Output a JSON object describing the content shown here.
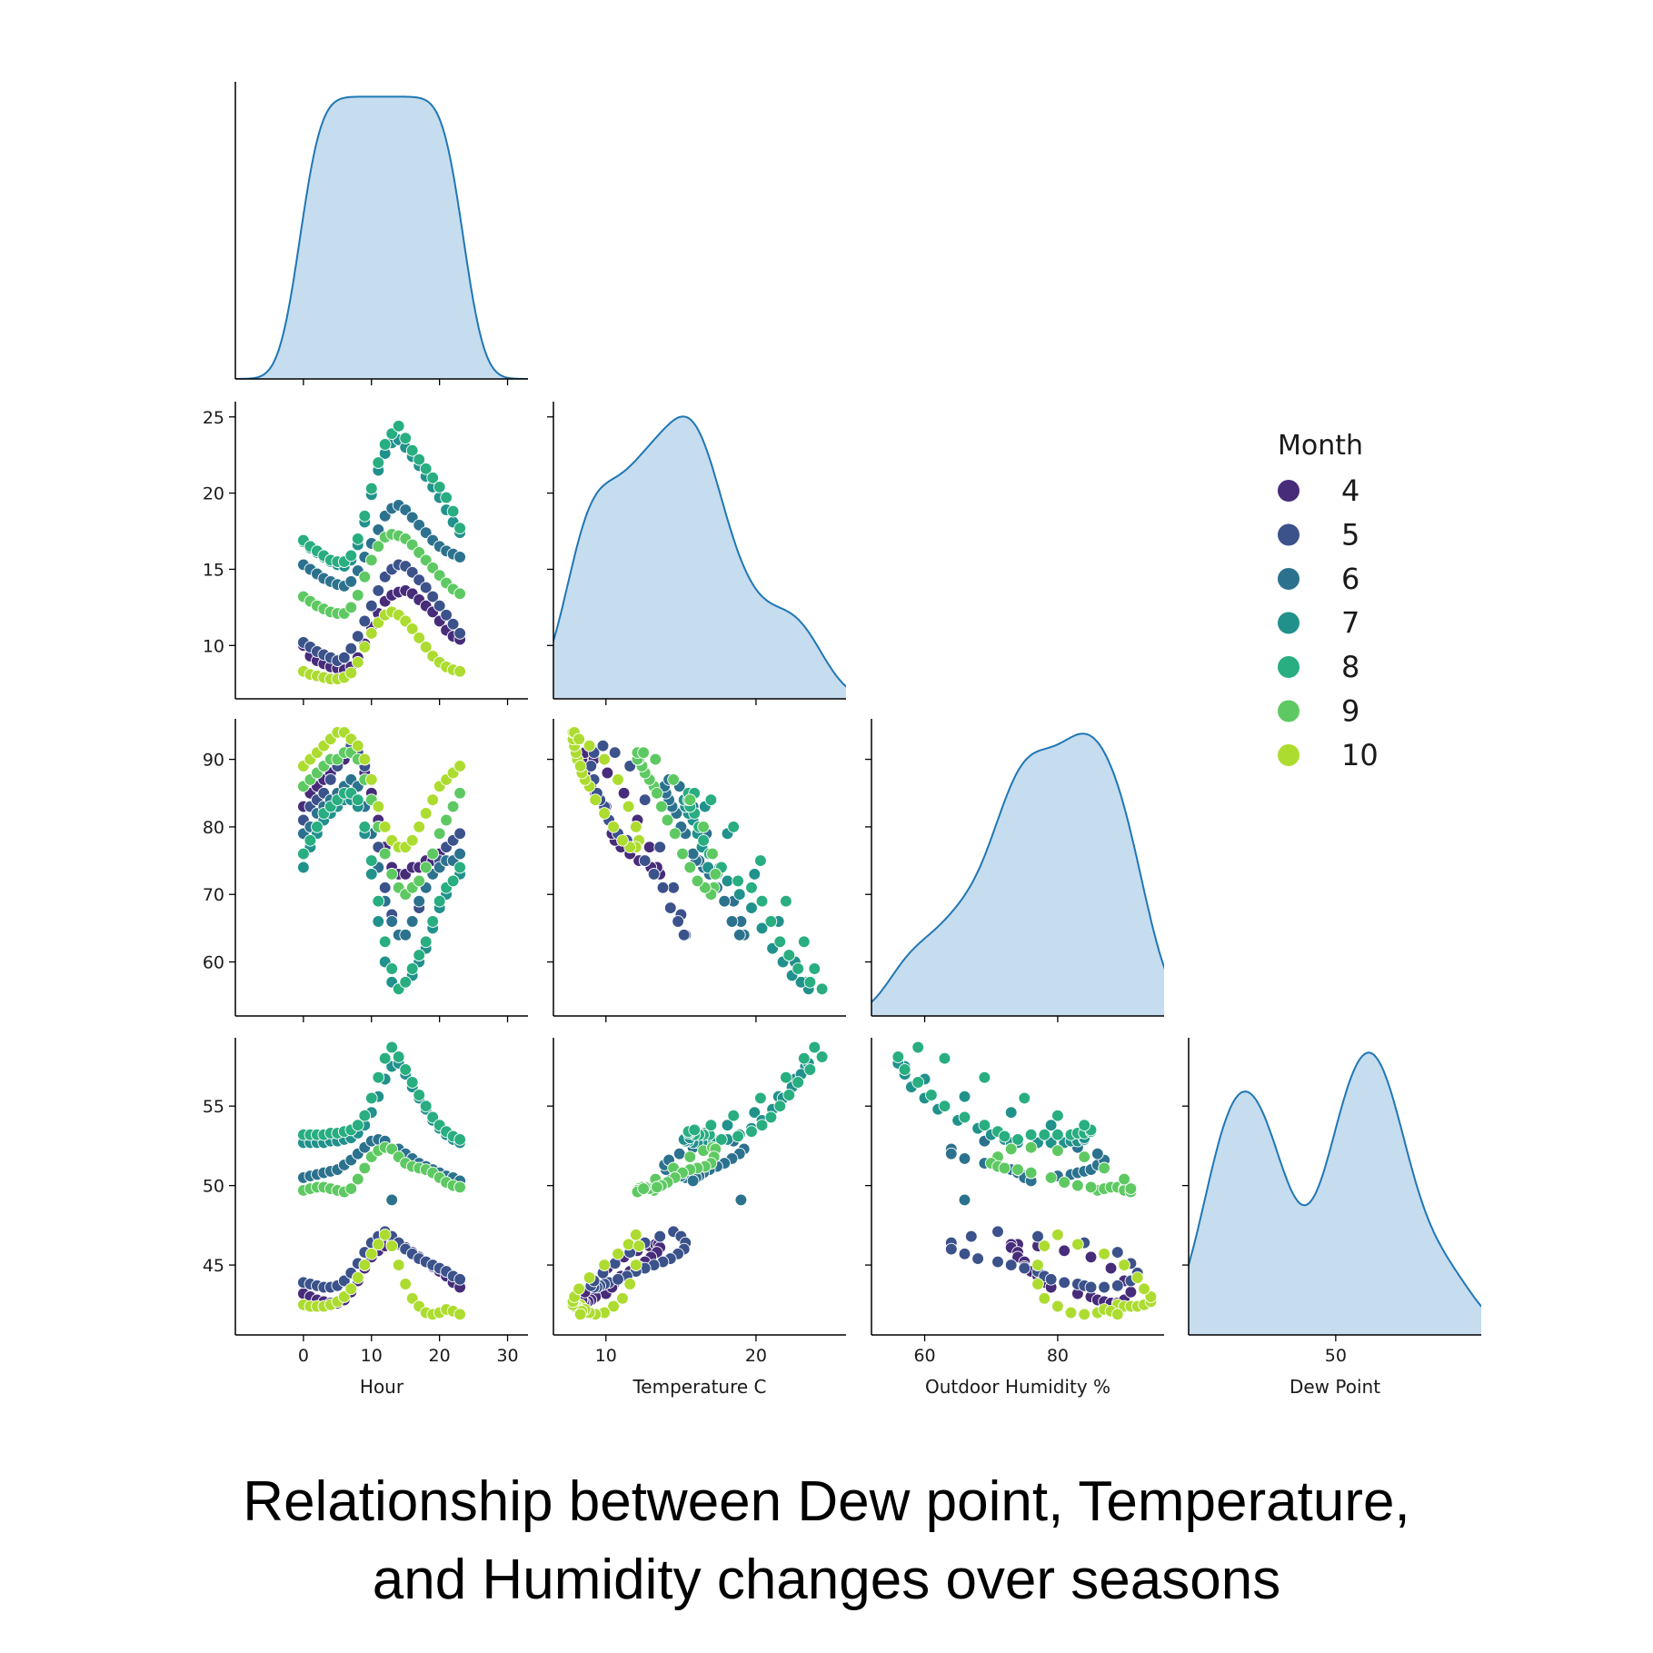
{
  "caption": {
    "line1": "Relationship between Dew point, Temperature,",
    "line2": "and Humidity changes over seasons"
  },
  "colors": {
    "kde_fill": "#c6dcef",
    "kde_line": "#1f77b4",
    "axis": "#000000",
    "months": {
      "4": "#472c7a",
      "5": "#3b528b",
      "6": "#2c728e",
      "7": "#21918c",
      "8": "#28ae80",
      "9": "#5ec962",
      "10": "#addc30"
    }
  },
  "chart_data": {
    "type": "scatter",
    "variables": [
      {
        "key": "hour",
        "label": "Hour",
        "lim": [
          -10,
          33
        ],
        "ticks": [
          0,
          10,
          20,
          30
        ]
      },
      {
        "key": "temp",
        "label": "Temperature C",
        "lim": [
          6.5,
          26
        ],
        "ticks": [
          10,
          20,
          30
        ],
        "yticks": [
          10,
          15,
          20,
          25
        ]
      },
      {
        "key": "hum",
        "label": "Outdoor Humidity %",
        "lim": [
          52,
          96
        ],
        "ticks": [
          60,
          80,
          100
        ],
        "yticks": [
          60,
          70,
          80,
          90
        ]
      },
      {
        "key": "dew",
        "label": "Dew Point",
        "lim": [
          40.6,
          59.3
        ],
        "ticks": [
          40,
          50,
          60
        ],
        "yticks": [
          45,
          50,
          55
        ]
      }
    ],
    "diag_kde_ranges": [
      [
        -10,
        33
      ],
      [
        5.5,
        30
      ],
      [
        42,
        110
      ],
      [
        36,
        65
      ]
    ],
    "legend": {
      "title": "Month",
      "placement": "right",
      "entries": [
        "4",
        "5",
        "6",
        "7",
        "8",
        "9",
        "10"
      ]
    },
    "hours": [
      0,
      1,
      2,
      3,
      4,
      5,
      6,
      7,
      8,
      9,
      10,
      11,
      12,
      13,
      14,
      15,
      16,
      17,
      18,
      19,
      20,
      21,
      22,
      23
    ],
    "series": [
      {
        "name": "4",
        "temp": [
          10.0,
          9.3,
          9.0,
          8.8,
          8.6,
          8.5,
          8.4,
          8.6,
          9.2,
          10.1,
          11.2,
          12.1,
          12.9,
          13.3,
          13.5,
          13.6,
          13.4,
          13.0,
          12.6,
          12.2,
          11.6,
          11.0,
          10.6,
          10.4
        ],
        "hum": [
          83,
          85,
          86,
          87,
          88,
          89,
          90,
          91,
          90,
          88,
          85,
          81,
          77,
          74,
          73,
          73,
          74,
          74,
          75,
          75,
          76,
          77,
          78,
          79
        ],
        "dew": [
          43.2,
          43.0,
          42.8,
          42.7,
          42.6,
          42.6,
          42.8,
          43.3,
          44.0,
          44.8,
          45.5,
          45.9,
          46.2,
          46.3,
          46.3,
          46.1,
          45.8,
          45.5,
          45.2,
          44.9,
          44.6,
          44.3,
          43.9,
          43.6
        ]
      },
      {
        "name": "5",
        "temp": [
          10.2,
          9.9,
          9.6,
          9.4,
          9.2,
          9.0,
          9.2,
          9.8,
          10.6,
          11.6,
          12.6,
          13.6,
          14.5,
          15.0,
          15.3,
          15.2,
          14.8,
          14.3,
          13.8,
          13.2,
          12.6,
          12.0,
          11.4,
          10.8
        ],
        "hum": [
          81,
          83,
          84,
          85,
          87,
          89,
          91,
          92,
          91,
          89,
          84,
          77,
          71,
          67,
          64,
          64,
          66,
          68,
          71,
          73,
          75,
          77,
          78,
          79
        ],
        "dew": [
          43.9,
          43.8,
          43.7,
          43.6,
          43.6,
          43.7,
          44.0,
          44.5,
          45.1,
          45.8,
          46.4,
          46.8,
          47.1,
          46.8,
          46.4,
          46.0,
          45.7,
          45.4,
          45.2,
          45.0,
          44.8,
          44.6,
          44.3,
          44.1
        ]
      },
      {
        "name": "6",
        "temp": [
          15.3,
          15.0,
          14.7,
          14.4,
          14.2,
          14.0,
          13.9,
          14.2,
          14.9,
          15.8,
          16.7,
          17.6,
          18.5,
          19.0,
          19.2,
          18.9,
          18.4,
          17.9,
          17.4,
          16.9,
          16.5,
          16.2,
          16.0,
          15.8
        ],
        "hum": [
          79,
          80,
          82,
          83,
          84,
          85,
          86,
          87,
          86,
          83,
          79,
          74,
          69,
          66,
          64,
          64,
          66,
          69,
          71,
          73,
          74,
          75,
          75,
          76
        ],
        "dew": [
          50.5,
          50.6,
          50.7,
          50.8,
          50.9,
          51.0,
          51.3,
          51.6,
          52.0,
          52.4,
          52.8,
          52.9,
          52.8,
          49.1,
          52.3,
          52.0,
          51.7,
          51.4,
          51.2,
          51.0,
          50.8,
          50.6,
          50.5,
          50.3
        ]
      },
      {
        "name": "7",
        "temp": [
          16.8,
          16.4,
          16.1,
          15.8,
          15.5,
          15.3,
          15.2,
          15.6,
          16.6,
          18.1,
          19.9,
          21.5,
          22.6,
          23.3,
          23.5,
          23.0,
          22.4,
          21.8,
          21.1,
          20.4,
          19.7,
          18.9,
          18.1,
          17.4
        ],
        "hum": [
          74,
          77,
          79,
          81,
          82,
          83,
          84,
          84,
          83,
          79,
          73,
          66,
          60,
          57,
          56,
          57,
          58,
          60,
          62,
          65,
          68,
          70,
          72,
          73
        ],
        "dew": [
          52.7,
          52.7,
          52.7,
          52.7,
          52.8,
          52.8,
          52.9,
          53.0,
          53.3,
          53.8,
          54.6,
          55.6,
          56.7,
          57.5,
          57.7,
          57.0,
          56.2,
          55.5,
          54.8,
          54.1,
          53.6,
          53.2,
          52.9,
          52.7
        ]
      },
      {
        "name": "8",
        "temp": [
          16.9,
          16.5,
          16.2,
          15.9,
          15.6,
          15.5,
          15.5,
          15.9,
          17.0,
          18.5,
          20.3,
          22.0,
          23.2,
          23.9,
          24.4,
          23.6,
          22.8,
          22.2,
          21.6,
          21.0,
          20.4,
          19.7,
          18.8,
          17.7
        ],
        "hum": [
          76,
          78,
          80,
          82,
          83,
          84,
          85,
          85,
          84,
          80,
          75,
          69,
          63,
          59,
          56,
          57,
          59,
          61,
          63,
          66,
          69,
          71,
          72,
          74
        ],
        "dew": [
          53.2,
          53.2,
          53.2,
          53.2,
          53.3,
          53.3,
          53.4,
          53.5,
          53.8,
          54.4,
          55.5,
          56.8,
          58.0,
          58.7,
          58.1,
          57.3,
          56.5,
          55.7,
          55.0,
          54.3,
          53.8,
          53.4,
          53.1,
          52.9
        ]
      },
      {
        "name": "9",
        "temp": [
          13.2,
          12.9,
          12.6,
          12.4,
          12.2,
          12.1,
          12.1,
          12.5,
          13.3,
          14.5,
          15.6,
          16.5,
          17.1,
          17.3,
          17.2,
          17.0,
          16.6,
          16.1,
          15.6,
          15.1,
          14.6,
          14.1,
          13.7,
          13.4
        ],
        "hum": [
          86,
          87,
          88,
          89,
          90,
          90,
          91,
          91,
          90,
          87,
          84,
          80,
          76,
          73,
          71,
          70,
          71,
          72,
          74,
          76,
          79,
          81,
          83,
          85
        ],
        "dew": [
          49.7,
          49.8,
          49.9,
          49.9,
          49.8,
          49.7,
          49.6,
          49.8,
          50.4,
          51.1,
          51.8,
          52.2,
          52.4,
          52.3,
          51.8,
          51.4,
          51.2,
          51.1,
          51.0,
          50.8,
          50.5,
          50.2,
          50.0,
          49.9
        ]
      },
      {
        "name": "10",
        "temp": [
          8.3,
          8.1,
          8.0,
          7.9,
          7.8,
          7.8,
          7.9,
          8.2,
          8.9,
          9.9,
          10.8,
          11.5,
          12.0,
          12.2,
          12.0,
          11.6,
          11.1,
          10.5,
          9.9,
          9.3,
          8.9,
          8.6,
          8.4,
          8.3
        ],
        "hum": [
          89,
          90,
          91,
          92,
          93,
          94,
          94,
          93,
          92,
          90,
          87,
          83,
          80,
          78,
          77,
          77,
          78,
          80,
          82,
          84,
          86,
          87,
          88,
          89
        ],
        "dew": [
          42.5,
          42.4,
          42.4,
          42.4,
          42.5,
          42.7,
          43.0,
          43.5,
          44.2,
          45.0,
          45.7,
          46.3,
          46.9,
          46.2,
          45.0,
          43.8,
          42.9,
          42.4,
          42.0,
          41.9,
          42.0,
          42.2,
          42.1,
          41.9
        ]
      }
    ]
  }
}
